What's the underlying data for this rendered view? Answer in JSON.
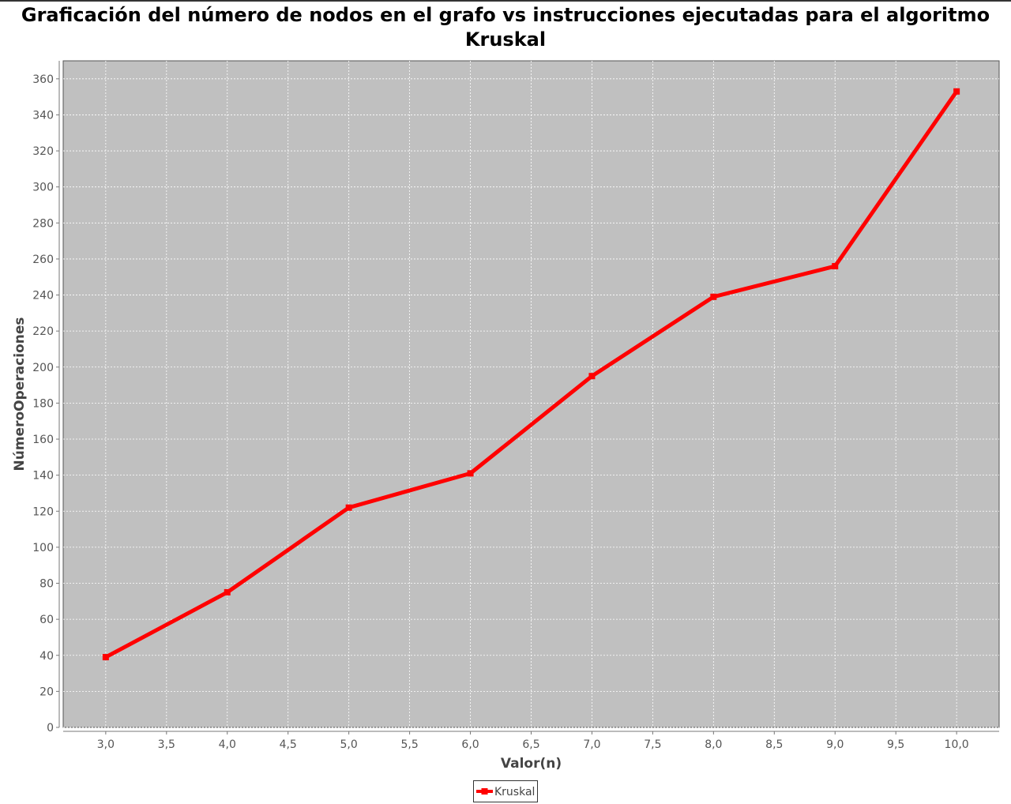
{
  "chart_data": {
    "type": "line",
    "title_lines": [
      "Graficación del número de nodos en el grafo vs instrucciones ejecutadas para el algoritmo",
      "Kruskal"
    ],
    "xlabel": "Valor(n)",
    "ylabel": "NúmeroOperaciones",
    "xlim": [
      2.65,
      10.35
    ],
    "ylim": [
      0,
      370
    ],
    "x_ticks": [
      "3,0",
      "3,5",
      "4,0",
      "4,5",
      "5,0",
      "5,5",
      "6,0",
      "6,5",
      "7,0",
      "7,5",
      "8,0",
      "8,5",
      "9,0",
      "9,5",
      "10,0"
    ],
    "y_ticks": [
      "0",
      "20",
      "40",
      "60",
      "80",
      "100",
      "120",
      "140",
      "160",
      "180",
      "200",
      "220",
      "240",
      "260",
      "280",
      "300",
      "320",
      "340",
      "360"
    ],
    "grid": true,
    "legend_placement": "bottom-center",
    "plot_background": "#c0c0c0",
    "series": [
      {
        "name": "Kruskal",
        "color": "#ff0000",
        "x": [
          3,
          4,
          5,
          6,
          7,
          8,
          9,
          10
        ],
        "y": [
          39,
          75,
          122,
          141,
          195,
          239,
          256,
          353
        ]
      }
    ]
  }
}
